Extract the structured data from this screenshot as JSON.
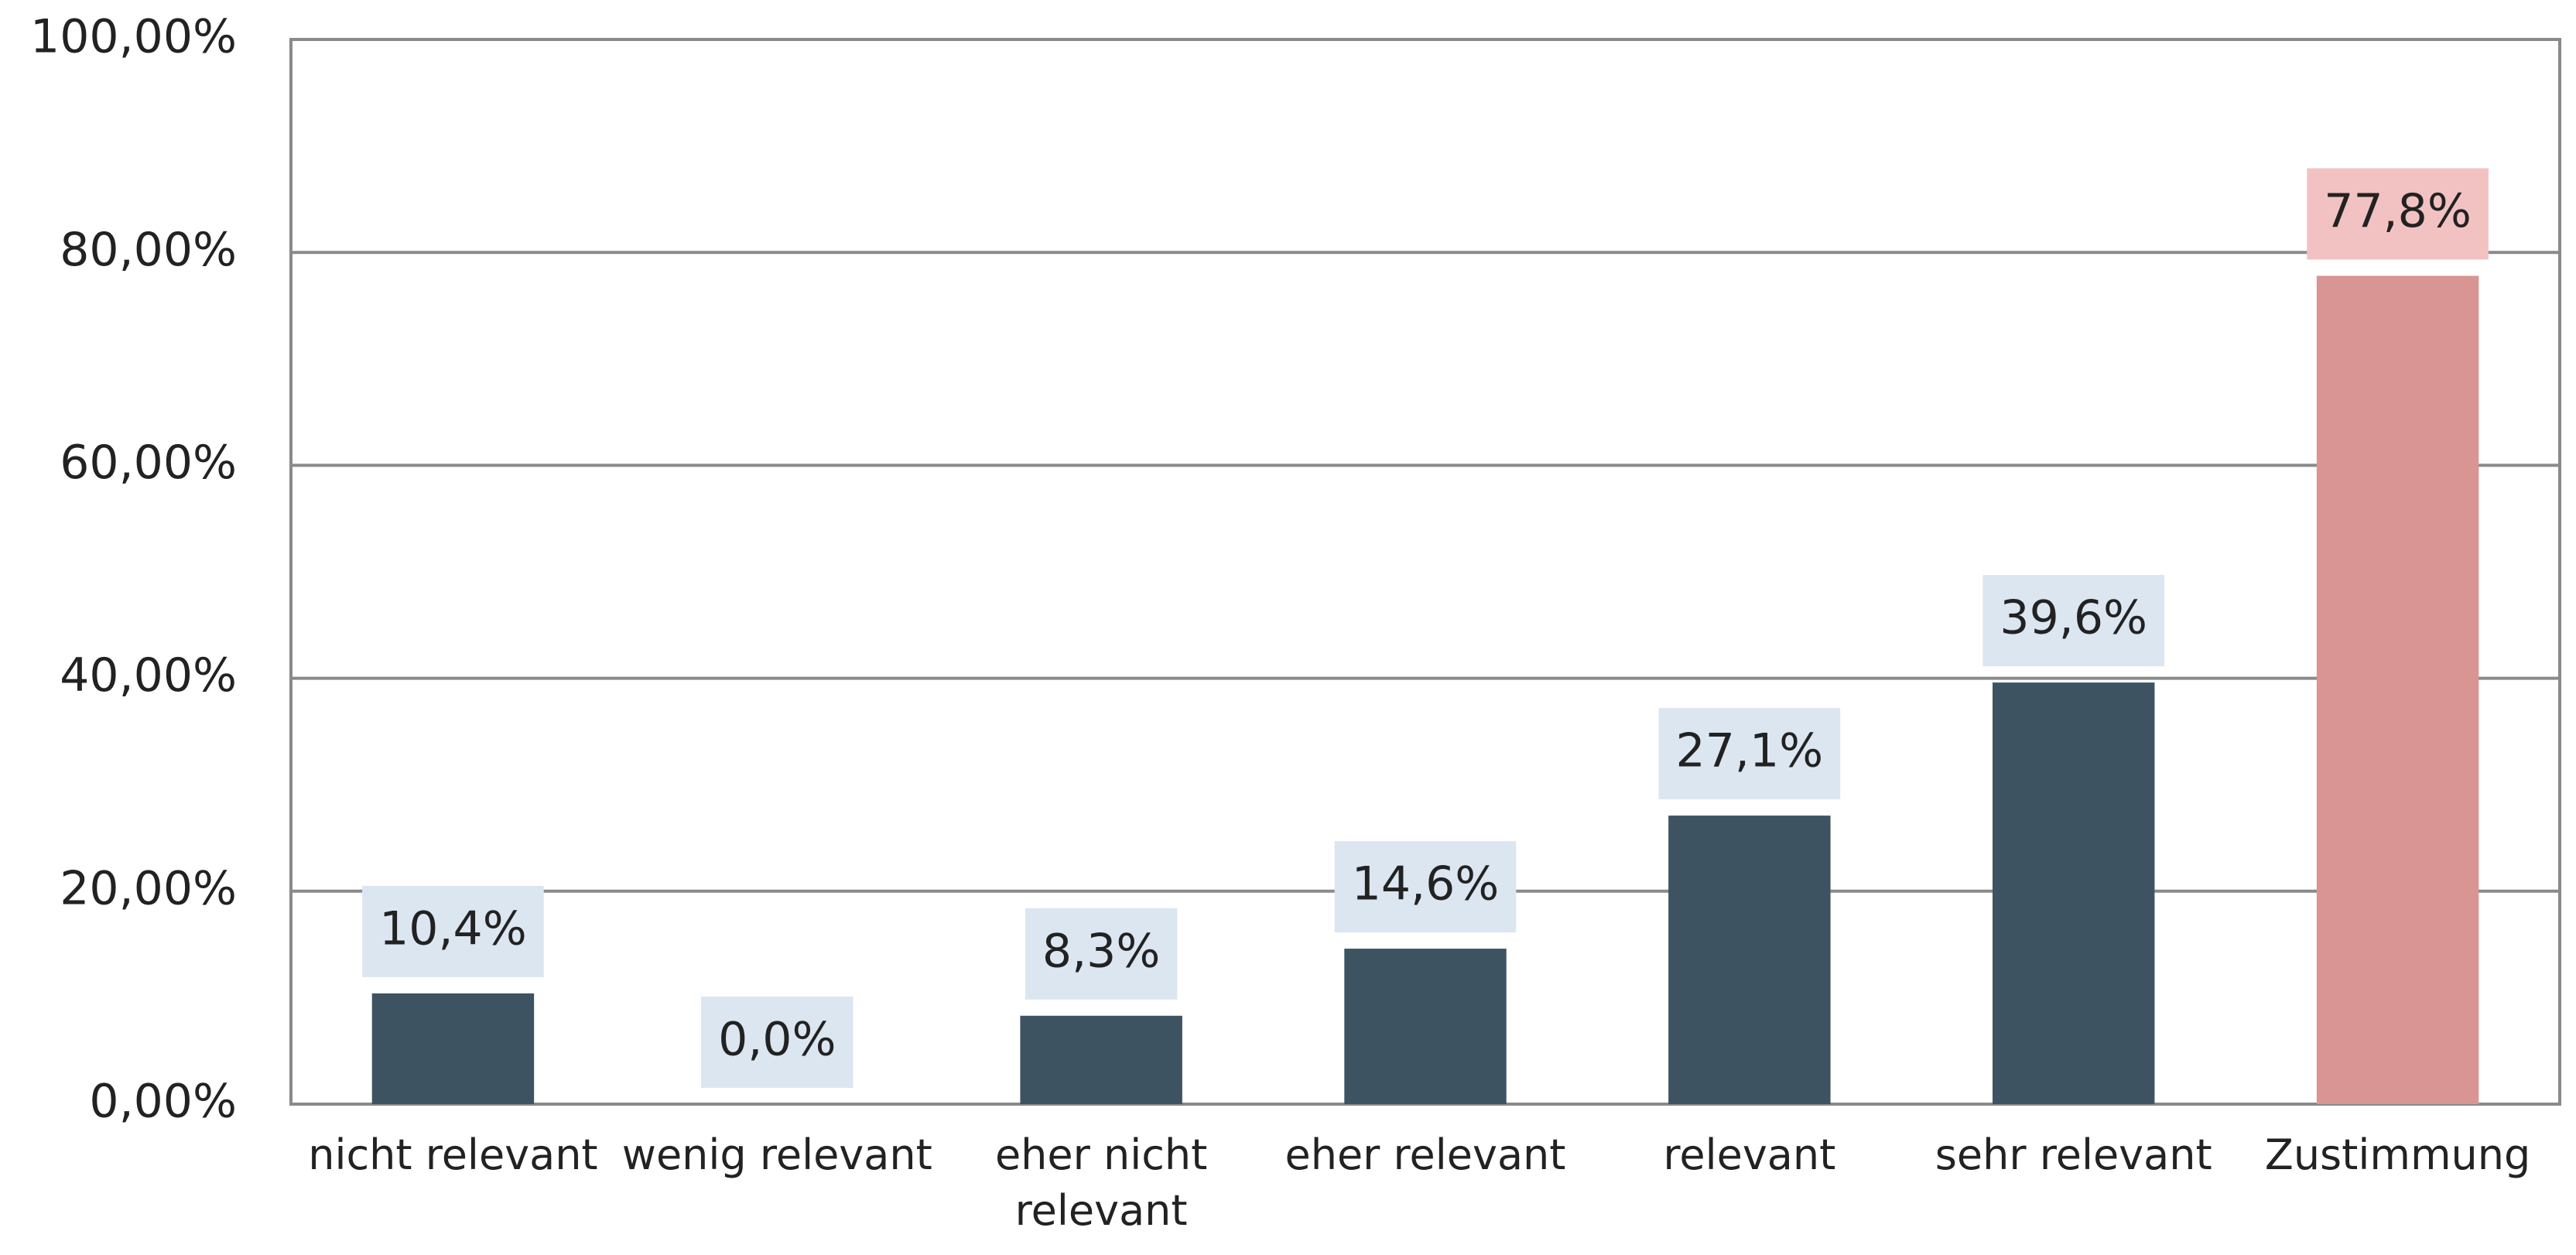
{
  "chart_data": {
    "type": "bar",
    "categories": [
      "nicht relevant",
      "wenig relevant",
      "eher nicht relevant",
      "eher relevant",
      "relevant",
      "sehr relevant",
      "Zustimmung"
    ],
    "values": [
      10.4,
      0,
      8.3,
      14.6,
      27.1,
      39.6,
      77.8
    ],
    "value_labels": [
      "10,4%",
      "0,0%",
      "8,3%",
      "14,6%",
      "27,1%",
      "39,6%",
      "77,8%"
    ],
    "colors": [
      "#3d5361",
      "#3d5361",
      "#3d5361",
      "#3d5361",
      "#3d5361",
      "#3d5361",
      "#d99594"
    ],
    "value_label_colors": [
      "#dce6f1",
      "#dce6f1",
      "#dce6f1",
      "#dce6f1",
      "#dce6f1",
      "#dce6f1",
      "#f2c2c2"
    ],
    "ylim": [
      0,
      100
    ],
    "yticks": [
      {
        "value": 0,
        "label": "0,00%"
      },
      {
        "value": 20,
        "label": "20,00%"
      },
      {
        "value": 40,
        "label": "40,00%"
      },
      {
        "value": 60,
        "label": "60,00%"
      },
      {
        "value": 80,
        "label": "80,00%"
      },
      {
        "value": 100,
        "label": "100,00%"
      }
    ],
    "grid": true
  }
}
